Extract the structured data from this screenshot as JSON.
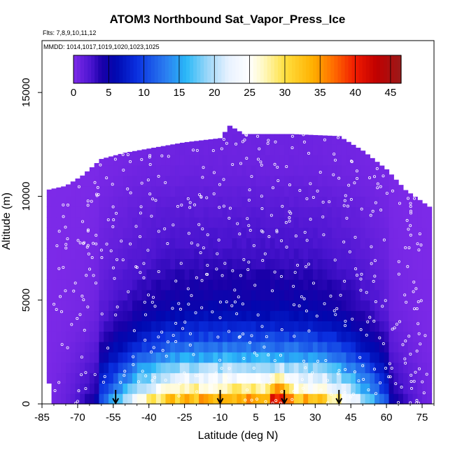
{
  "chart_data": {
    "type": "heatmap",
    "title": "ATOM3 Northbound Sat_Vapor_Press_Ice",
    "flights_label": "Flts: 7,8,9,10,11,12",
    "mmdd_label": "MMDD: 1014,1017,1019,1020,1023,1025",
    "xlabel": "Latitude (deg N)",
    "ylabel": "Altitude (m)",
    "xlim": [
      -85,
      80
    ],
    "ylim": [
      0,
      17500
    ],
    "x_ticks": [
      -85,
      -70,
      -55,
      -40,
      -25,
      -10,
      5,
      15,
      30,
      45,
      60,
      75
    ],
    "x_tick_labels": [
      "-85",
      "-70",
      "-55",
      "-40",
      "-25",
      "-10",
      "5",
      "15",
      "30",
      "45",
      "60",
      "75"
    ],
    "y_ticks": [
      0,
      5000,
      10000,
      15000
    ],
    "y_tick_labels": [
      "0",
      "5000",
      "10000",
      "15000"
    ],
    "colorbar": {
      "min": 0,
      "max": 46.5,
      "ticks": [
        0,
        5,
        10,
        15,
        20,
        25,
        30,
        35,
        40,
        45
      ],
      "tick_labels": [
        "0",
        "5",
        "10",
        "15",
        "20",
        "25",
        "30",
        "35",
        "40",
        "45"
      ],
      "stops": [
        {
          "v": 0,
          "c": "#7d2ae8"
        },
        {
          "v": 2.5,
          "c": "#4a14d0"
        },
        {
          "v": 4,
          "c": "#1a00a8"
        },
        {
          "v": 6,
          "c": "#0008b0"
        },
        {
          "v": 9,
          "c": "#0a30e0"
        },
        {
          "v": 13,
          "c": "#2a7cf0"
        },
        {
          "v": 16,
          "c": "#2ab8f8"
        },
        {
          "v": 19,
          "c": "#9ad6f8"
        },
        {
          "v": 22,
          "c": "#e8f2ff"
        },
        {
          "v": 25,
          "c": "#ffffff"
        },
        {
          "v": 27,
          "c": "#fff8c0"
        },
        {
          "v": 30,
          "c": "#ffe040"
        },
        {
          "v": 34,
          "c": "#ffb000"
        },
        {
          "v": 37,
          "c": "#ff6a00"
        },
        {
          "v": 40,
          "c": "#f01a00"
        },
        {
          "v": 43,
          "c": "#c00000"
        },
        {
          "v": 46.5,
          "c": "#9a1a1a"
        }
      ]
    },
    "arrows_latitude": [
      -54,
      -10,
      17,
      40
    ],
    "vertical_profile_alt_m": [
      0,
      500,
      1000,
      1500,
      2000,
      2500,
      3000,
      3500,
      4000,
      4500,
      5000,
      6000,
      7000,
      8000,
      9000,
      10000,
      11000,
      12000
    ],
    "vertical_profile_max_value": [
      38,
      30,
      25,
      22,
      17,
      14,
      11,
      9,
      7,
      6,
      5,
      4,
      3,
      2.5,
      2,
      1.5,
      1,
      0.8
    ],
    "grid_lat_step": 5,
    "grid_alt_step_m": 500,
    "coverage_top_by_lat": [
      {
        "lat": -83,
        "top": 10300
      },
      {
        "lat": -75,
        "top": 10500
      },
      {
        "lat": -68,
        "top": 11000
      },
      {
        "lat": -60,
        "top": 11800
      },
      {
        "lat": -50,
        "top": 12100
      },
      {
        "lat": -40,
        "top": 12300
      },
      {
        "lat": -25,
        "top": 12600
      },
      {
        "lat": -10,
        "top": 12800
      },
      {
        "lat": -6,
        "top": 13400
      },
      {
        "lat": 0,
        "top": 13000
      },
      {
        "lat": 20,
        "top": 13000
      },
      {
        "lat": 40,
        "top": 12900
      },
      {
        "lat": 50,
        "top": 12200
      },
      {
        "lat": 60,
        "top": 11300
      },
      {
        "lat": 68,
        "top": 10300
      },
      {
        "lat": 78,
        "top": 9500
      }
    ],
    "coverage_bottom_by_lat": [
      {
        "lat": -83,
        "bottom": 1500
      },
      {
        "lat": -80,
        "bottom": 400
      },
      {
        "lat": -76,
        "bottom": 0
      },
      {
        "lat": 77,
        "bottom": 0
      },
      {
        "lat": 78,
        "bottom": 300
      }
    ]
  }
}
